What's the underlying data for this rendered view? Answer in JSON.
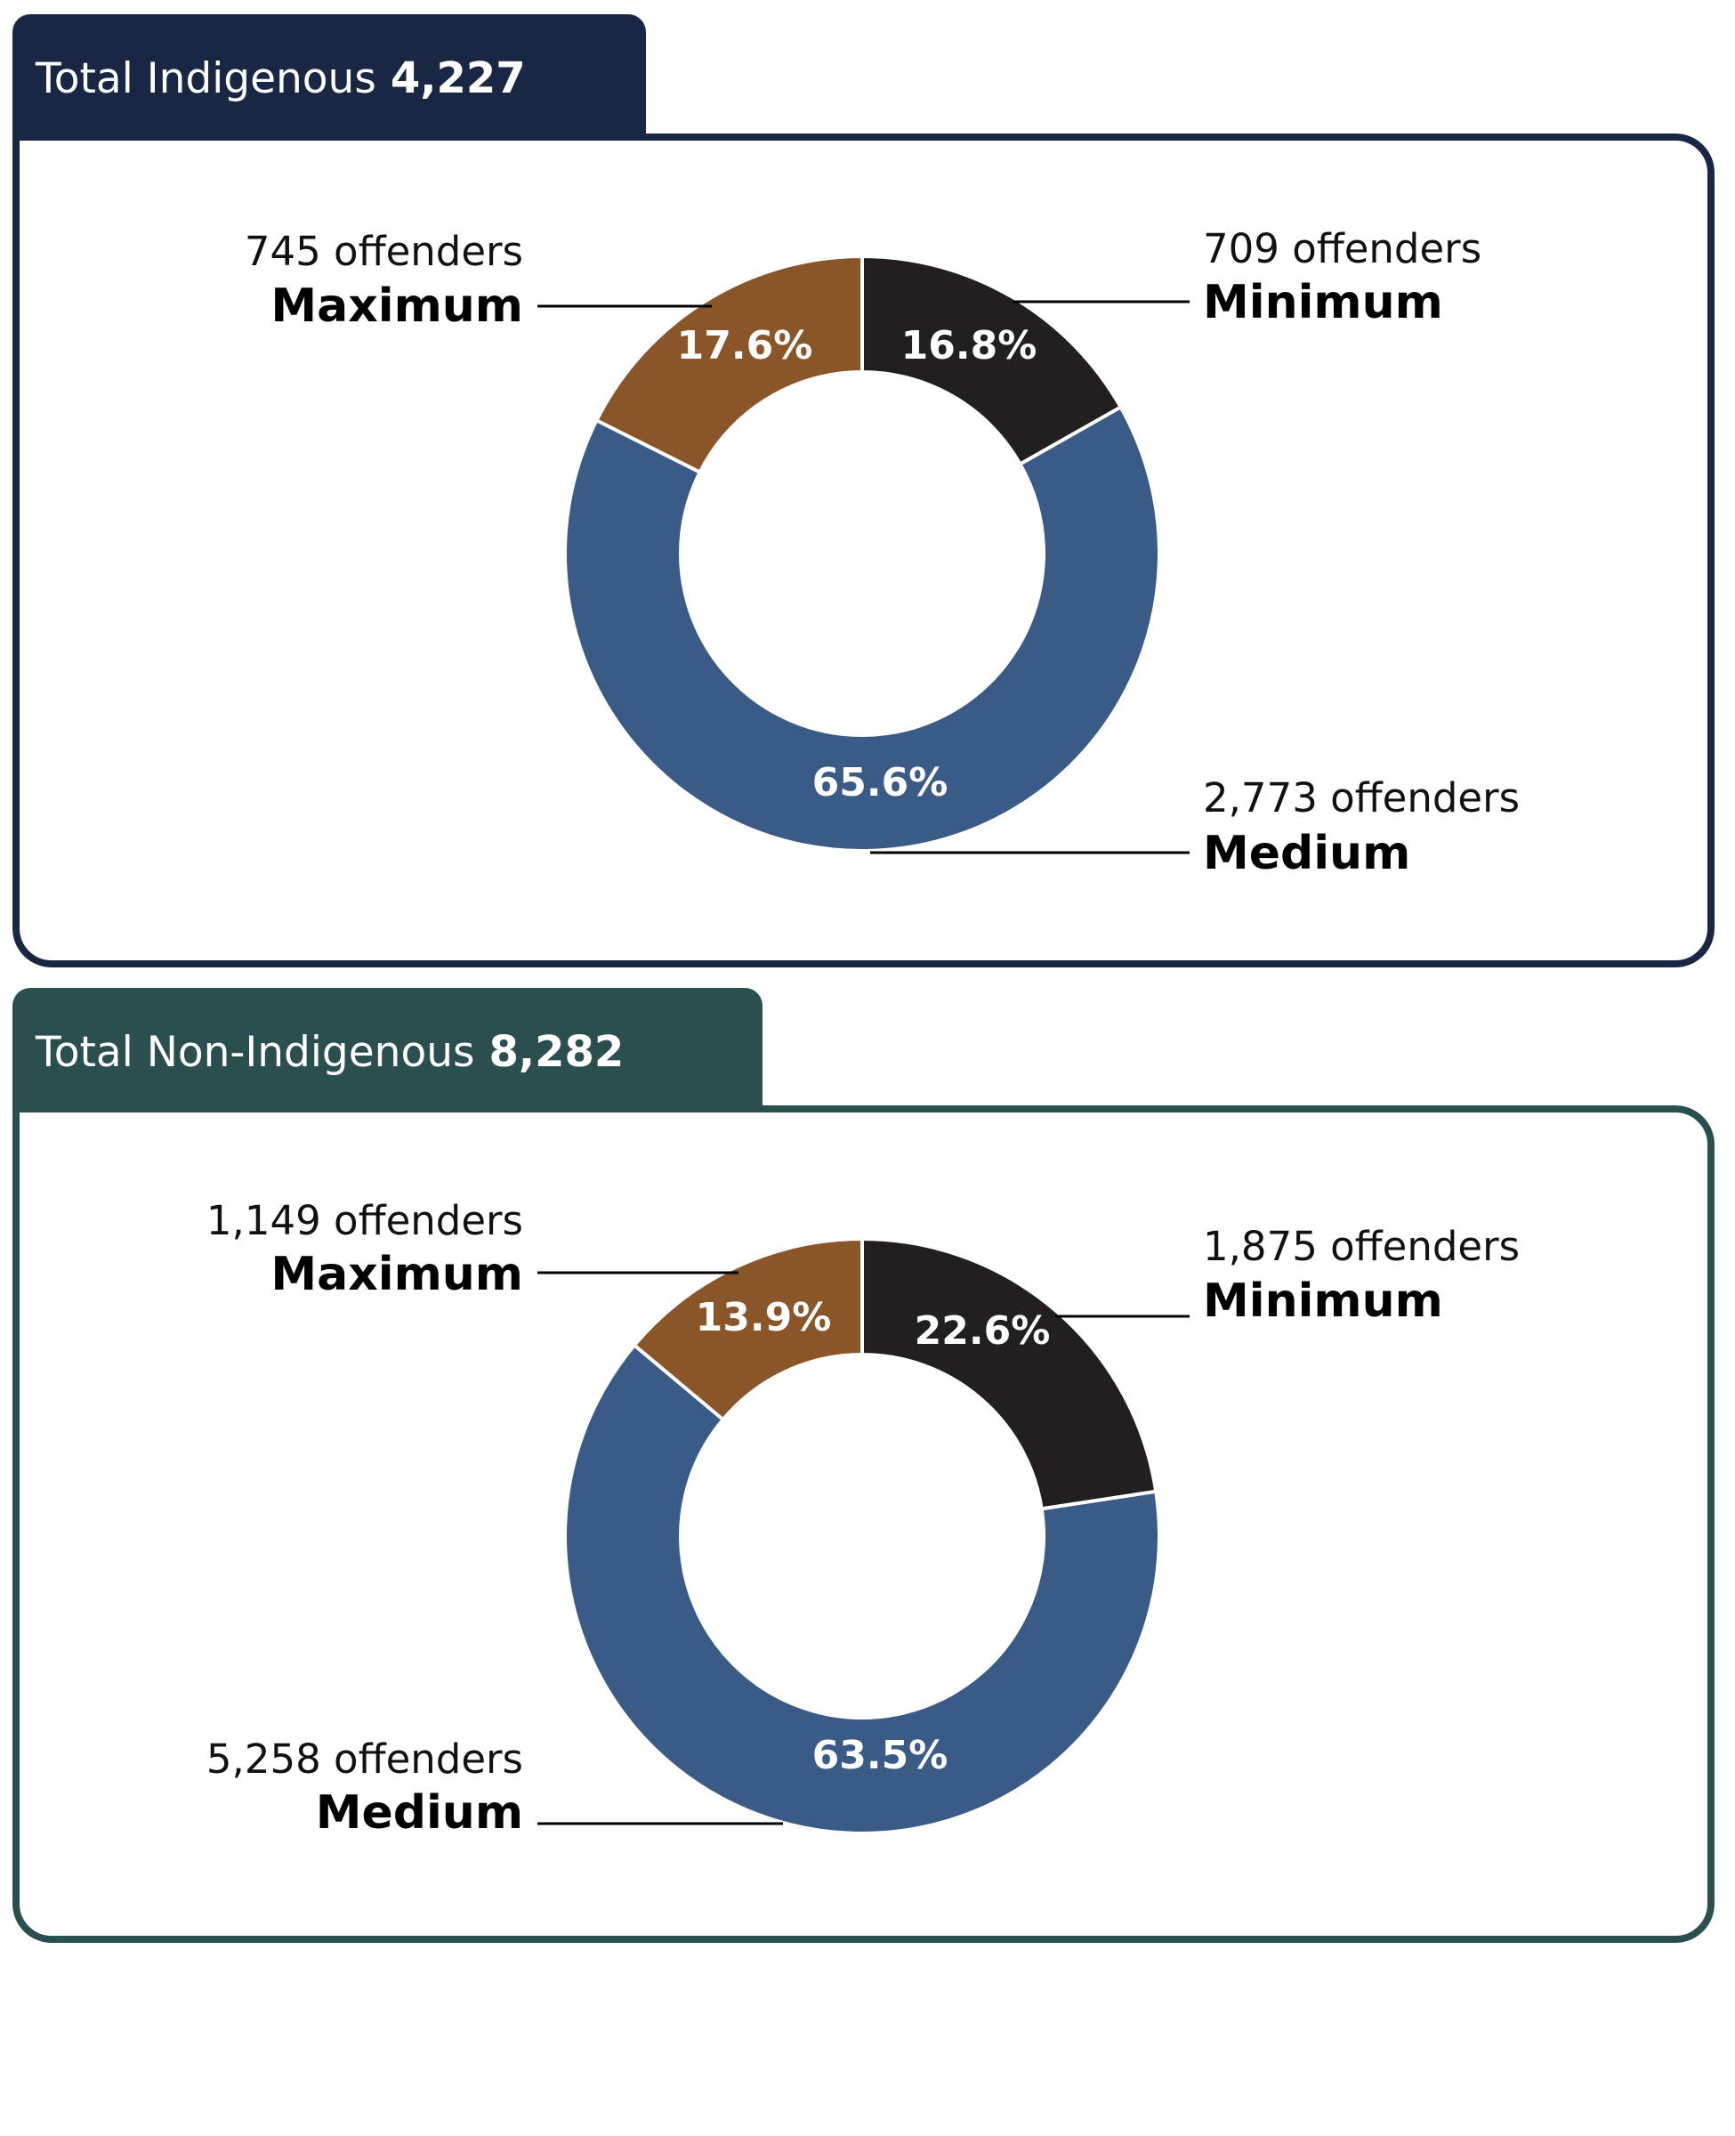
{
  "panels": [
    {
      "label": "Total Indigenous",
      "total": "4,227",
      "header_color": "#1a2744"
    },
    {
      "label": "Total Non-Indigenous",
      "total": "8,282",
      "header_color": "#2b4f4e"
    }
  ],
  "colors": {
    "Minimum": "#231f20",
    "Medium": "#3b5b87",
    "Maximum": "#8a5528"
  },
  "chart_data": [
    {
      "type": "pie",
      "title": "Total Indigenous 4,227",
      "donut": true,
      "slices": [
        {
          "category": "Minimum",
          "percent": 16.8,
          "count": 709,
          "count_label": "709 offenders",
          "pct_label": "16.8%"
        },
        {
          "category": "Medium",
          "percent": 65.6,
          "count": 2773,
          "count_label": "2,773 offenders",
          "pct_label": "65.6%"
        },
        {
          "category": "Maximum",
          "percent": 17.6,
          "count": 745,
          "count_label": "745 offenders",
          "pct_label": "17.6%"
        }
      ]
    },
    {
      "type": "pie",
      "title": "Total Non-Indigenous 8,282",
      "donut": true,
      "slices": [
        {
          "category": "Minimum",
          "percent": 22.6,
          "count": 1875,
          "count_label": "1,875 offenders",
          "pct_label": "22.6%"
        },
        {
          "category": "Medium",
          "percent": 63.5,
          "count": 5258,
          "count_label": "5,258 offenders",
          "pct_label": "63.5%"
        },
        {
          "category": "Maximum",
          "percent": 13.9,
          "count": 1149,
          "count_label": "1,149 offenders",
          "pct_label": "13.9%"
        }
      ]
    }
  ]
}
